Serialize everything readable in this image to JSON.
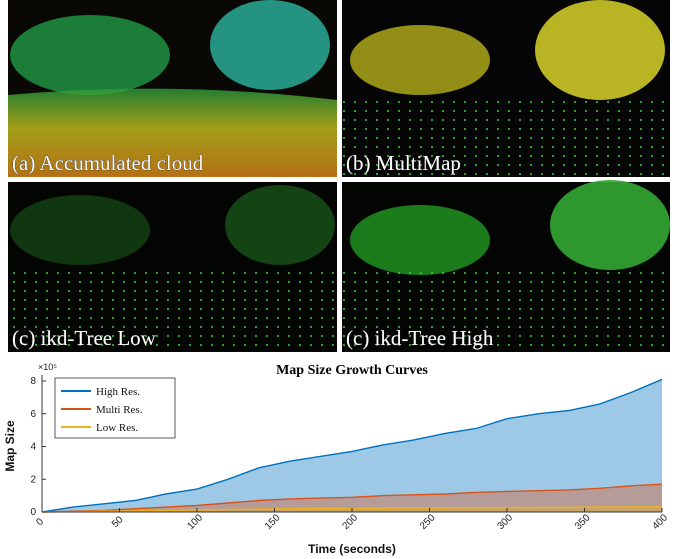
{
  "panels": [
    {
      "caption": "(a) Accumulated cloud"
    },
    {
      "caption": "(b) MultiMap"
    },
    {
      "caption": "(c) ikd-Tree Low"
    },
    {
      "caption": "(c) ikd-Tree High"
    }
  ],
  "chart_data": {
    "type": "area",
    "title": "Map Size Growth Curves",
    "x_label": "Time (seconds)",
    "y_label": "Map Size",
    "y_exponent": "×10⁵",
    "x": [
      0,
      20,
      40,
      60,
      80,
      100,
      120,
      140,
      160,
      180,
      200,
      220,
      240,
      260,
      280,
      300,
      320,
      340,
      360,
      380,
      400
    ],
    "series": [
      {
        "name": "High Res.",
        "color": "#0072bd",
        "values": [
          0,
          0.3,
          0.5,
          0.7,
          1.1,
          1.4,
          2.0,
          2.7,
          3.1,
          3.4,
          3.7,
          4.1,
          4.4,
          4.8,
          5.1,
          5.7,
          6.0,
          6.2,
          6.6,
          7.3,
          8.1
        ]
      },
      {
        "name": "Multi Res.",
        "color": "#d95319",
        "values": [
          0,
          0.05,
          0.1,
          0.2,
          0.3,
          0.4,
          0.55,
          0.7,
          0.8,
          0.85,
          0.9,
          1.0,
          1.05,
          1.1,
          1.2,
          1.25,
          1.3,
          1.35,
          1.45,
          1.6,
          1.7
        ]
      },
      {
        "name": "Low Res.",
        "color": "#edb120",
        "values": [
          0,
          0.02,
          0.05,
          0.07,
          0.1,
          0.12,
          0.15,
          0.18,
          0.2,
          0.21,
          0.22,
          0.23,
          0.24,
          0.25,
          0.26,
          0.27,
          0.28,
          0.29,
          0.3,
          0.31,
          0.32
        ]
      }
    ],
    "xlim": [
      0,
      400
    ],
    "xticks": [
      0,
      50,
      100,
      150,
      200,
      250,
      300,
      350,
      400
    ],
    "ylim": [
      0,
      8
    ],
    "yticks": [
      0,
      2,
      4,
      6,
      8
    ],
    "legend": "upper-left"
  }
}
